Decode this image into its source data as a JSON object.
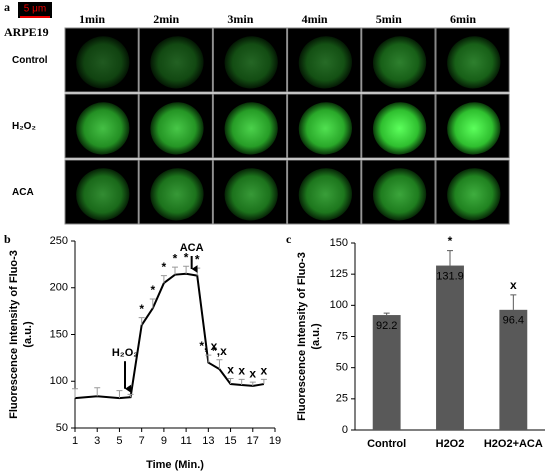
{
  "panel_a": {
    "label": "a",
    "scale_bar": "5 μm",
    "cell_line": "ARPE19",
    "columns": [
      "1min",
      "2min",
      "3min",
      "4min",
      "5min",
      "6min"
    ],
    "rows": [
      "Control",
      "H₂O₂",
      "ACA"
    ]
  },
  "chart_data": [
    {
      "type": "line",
      "label": "b",
      "x_label": "Time (Min.)",
      "y_label": [
        "Fluorescence Intensity of Fluo-3",
        "(a.u.)"
      ],
      "x": [
        1,
        3,
        5,
        6,
        7,
        8,
        9,
        10,
        11,
        12,
        13,
        14,
        15,
        16,
        17,
        18
      ],
      "series": [
        {
          "color": "#000000",
          "values": [
            82,
            84,
            82,
            83,
            160,
            178,
            205,
            214,
            215,
            213,
            120,
            113,
            97,
            96,
            95,
            97
          ],
          "errors": [
            10,
            9,
            8,
            3,
            8,
            10,
            8,
            8,
            8,
            8,
            8,
            10,
            6,
            6,
            4,
            5
          ],
          "point_labels": [
            null,
            null,
            null,
            null,
            "*",
            "*",
            "*",
            "*",
            "*",
            "*",
            "*, x",
            "*,x",
            "x",
            "x",
            "x",
            "x"
          ]
        }
      ],
      "annotations": [
        {
          "text": "H₂O₂",
          "x": 5.5
        },
        {
          "text": "ACA",
          "x": 11.5
        }
      ],
      "xlim": [
        1,
        19
      ],
      "xticks": [
        1,
        3,
        5,
        7,
        9,
        11,
        13,
        15,
        17,
        19
      ],
      "ylim": [
        50,
        250
      ],
      "yticks": [
        50,
        100,
        150,
        200,
        250
      ]
    },
    {
      "type": "bar",
      "label": "c",
      "y_label": [
        "Fluorescence Intensity of Fluo-3",
        "(a.u.)"
      ],
      "categories": [
        "Control",
        "H2O2",
        "H2O2+ACA"
      ],
      "values": [
        92.2,
        131.9,
        96.4
      ],
      "value_labels": [
        "92.2",
        "131.9",
        "96.4"
      ],
      "errors": [
        1.5,
        12,
        12
      ],
      "point_labels": [
        null,
        "*",
        "x"
      ],
      "color": "#595959",
      "ylim": [
        0,
        150
      ],
      "yticks": [
        0,
        25,
        50,
        75,
        100,
        125,
        150
      ]
    }
  ]
}
